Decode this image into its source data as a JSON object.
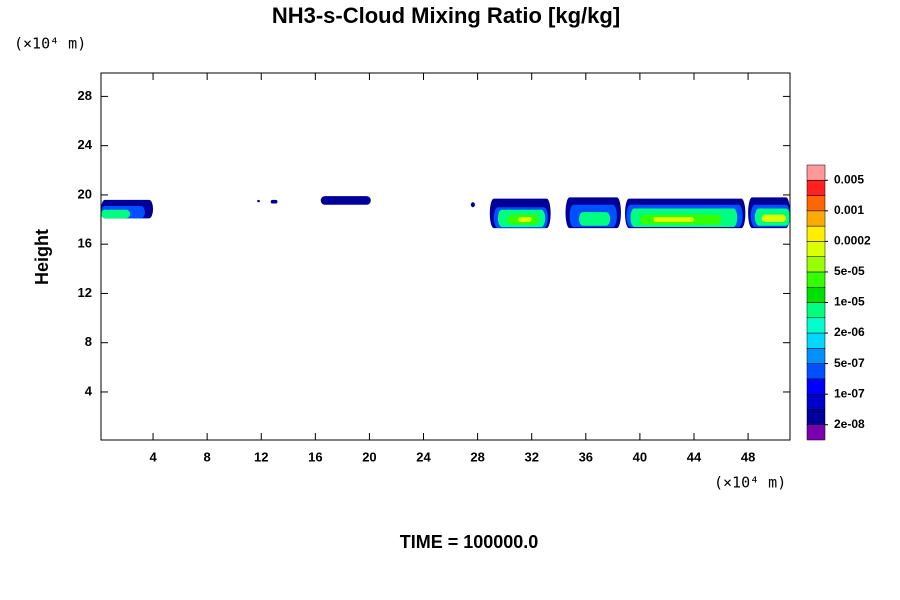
{
  "chart_data": {
    "type": "contour",
    "title": "NH3-s-Cloud Mixing Ratio [kg/kg]",
    "y_unit_label": "(×10⁴ m)",
    "x_unit_label": "(×10⁴ m)",
    "ylabel": "Height",
    "time_label": "TIME = 100000.0",
    "xlim": [
      0.15,
      51.1
    ],
    "ylim": [
      0.1,
      29.9
    ],
    "xticks": [
      4,
      8,
      12,
      16,
      20,
      24,
      28,
      32,
      36,
      40,
      44,
      48
    ],
    "yticks": [
      4,
      8,
      12,
      16,
      20,
      24,
      28
    ],
    "colorbar": {
      "colors": [
        "#7a00b0",
        "#000099",
        "#0000cc",
        "#0000ff",
        "#0050ff",
        "#0090ff",
        "#00d8ff",
        "#00ffcc",
        "#00ff80",
        "#00e000",
        "#33ff00",
        "#99ff00",
        "#ddff00",
        "#ffee00",
        "#ffaa00",
        "#ff6600",
        "#ff2020",
        "#ff9999"
      ],
      "levels": [
        {
          "value": 2e-08,
          "label": "2e-08"
        },
        {
          "value": 1e-07,
          "label": "1e-07"
        },
        {
          "value": 5e-07,
          "label": "5e-07"
        },
        {
          "value": 2e-06,
          "label": "2e-06"
        },
        {
          "value": 1e-05,
          "label": "1e-05"
        },
        {
          "value": 5e-05,
          "label": "5e-05"
        },
        0.0002,
        0.001,
        0.005
      ]
    },
    "cells": [
      {
        "x": [
          0.15,
          4.0
        ],
        "y": [
          18.1,
          19.6
        ],
        "value": 3e-08
      },
      {
        "x": [
          0.15,
          3.4
        ],
        "y": [
          18.1,
          19.1
        ],
        "value": 3e-07
      },
      {
        "x": [
          0.15,
          2.3
        ],
        "y": [
          18.1,
          18.8
        ],
        "value": 5e-06
      },
      {
        "x": [
          11.7,
          11.9
        ],
        "y": [
          19.4,
          19.6
        ],
        "value": 3e-08
      },
      {
        "x": [
          12.7,
          13.2
        ],
        "y": [
          19.3,
          19.6
        ],
        "value": 3e-08
      },
      {
        "x": [
          16.4,
          20.1
        ],
        "y": [
          19.2,
          19.9
        ],
        "value": 3e-08
      },
      {
        "x": [
          27.5,
          27.8
        ],
        "y": [
          19.0,
          19.4
        ],
        "value": 3e-08
      },
      {
        "x": [
          28.9,
          33.4
        ],
        "y": [
          17.3,
          19.7
        ],
        "value": 3e-08
      },
      {
        "x": [
          29.2,
          33.2
        ],
        "y": [
          17.3,
          19.0
        ],
        "value": 3e-07
      },
      {
        "x": [
          29.5,
          33.0
        ],
        "y": [
          17.4,
          18.8
        ],
        "value": 5e-06
      },
      {
        "x": [
          30.2,
          32.5
        ],
        "y": [
          17.6,
          18.4
        ],
        "value": 4e-05
      },
      {
        "x": [
          31.0,
          32.0
        ],
        "y": [
          17.8,
          18.2
        ],
        "value": 0.00012
      },
      {
        "x": [
          34.5,
          38.6
        ],
        "y": [
          17.3,
          19.8
        ],
        "value": 3e-08
      },
      {
        "x": [
          34.8,
          38.3
        ],
        "y": [
          17.4,
          19.2
        ],
        "value": 3e-07
      },
      {
        "x": [
          35.5,
          37.8
        ],
        "y": [
          17.5,
          18.6
        ],
        "value": 5e-06
      },
      {
        "x": [
          38.9,
          47.8
        ],
        "y": [
          17.3,
          19.7
        ],
        "value": 3e-08
      },
      {
        "x": [
          39.0,
          47.6
        ],
        "y": [
          17.4,
          19.2
        ],
        "value": 3e-07
      },
      {
        "x": [
          39.3,
          47.2
        ],
        "y": [
          17.4,
          18.9
        ],
        "value": 5e-06
      },
      {
        "x": [
          40.0,
          46.0
        ],
        "y": [
          17.6,
          18.4
        ],
        "value": 4e-05
      },
      {
        "x": [
          41.0,
          44.0
        ],
        "y": [
          17.8,
          18.2
        ],
        "value": 0.00012
      },
      {
        "x": [
          48.0,
          51.1
        ],
        "y": [
          17.3,
          19.8
        ],
        "value": 3e-08
      },
      {
        "x": [
          48.2,
          51.1
        ],
        "y": [
          17.4,
          19.2
        ],
        "value": 3e-07
      },
      {
        "x": [
          48.5,
          51.1
        ],
        "y": [
          17.5,
          18.9
        ],
        "value": 5e-06
      },
      {
        "x": [
          49.0,
          50.8
        ],
        "y": [
          17.8,
          18.4
        ],
        "value": 0.00012
      }
    ]
  }
}
